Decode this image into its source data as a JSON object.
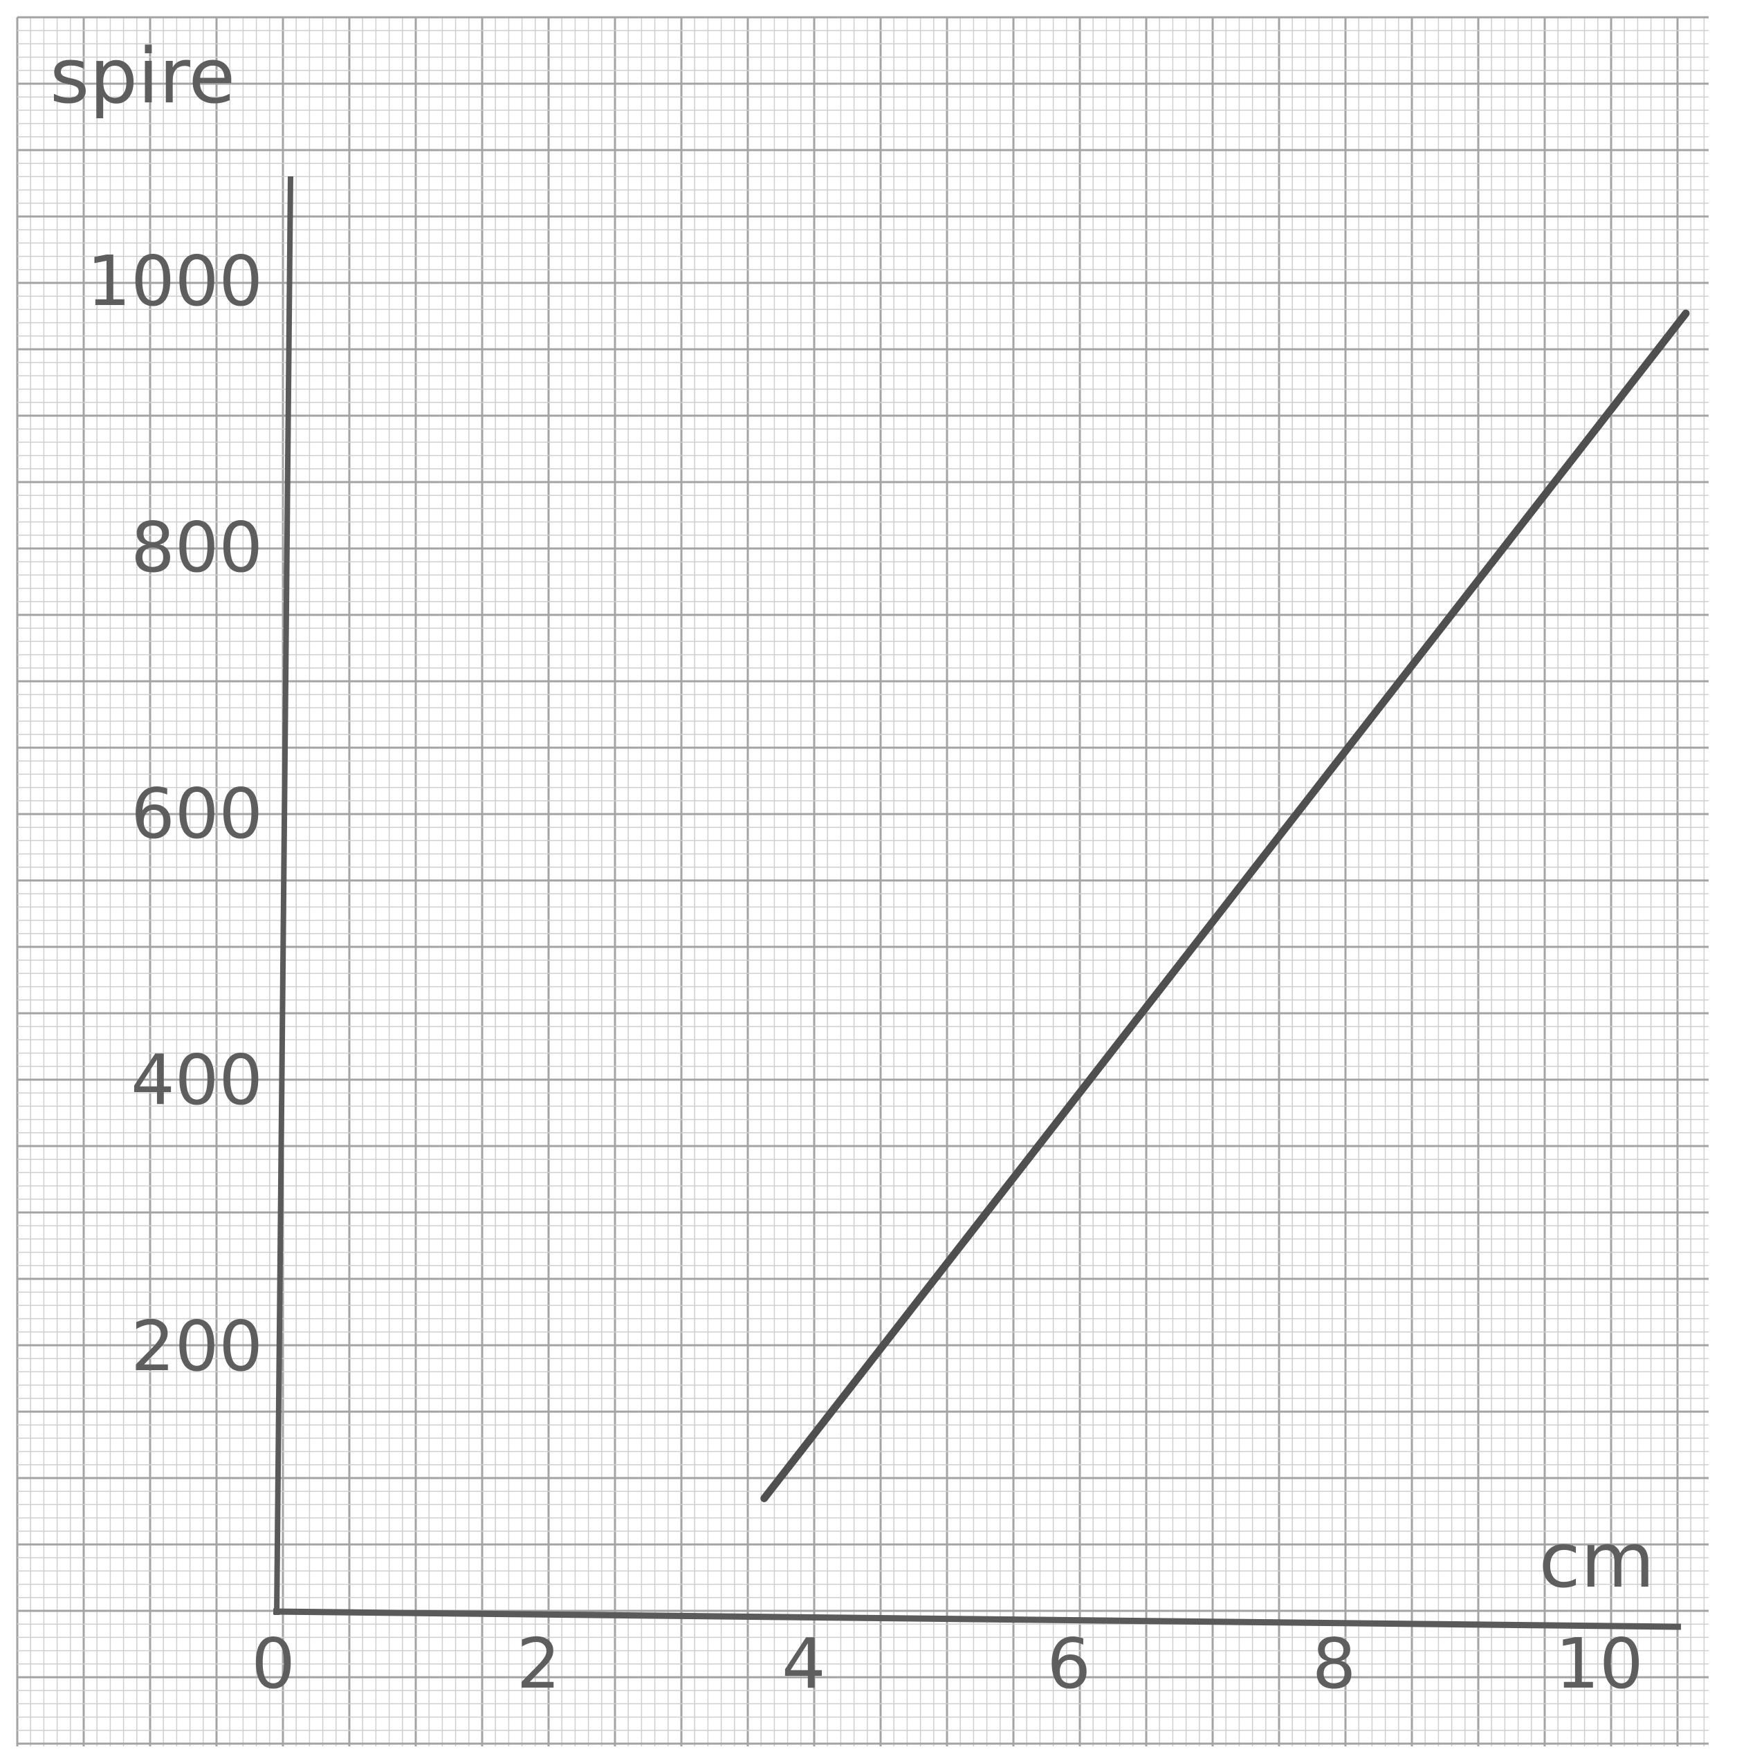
{
  "chart_data": {
    "type": "line",
    "xlabel": "cm",
    "ylabel": "spire",
    "xlim": [
      0,
      10.8
    ],
    "ylim": [
      0,
      1090
    ],
    "grid": true,
    "x_ticks": [
      {
        "value": 0,
        "label": "0"
      },
      {
        "value": 2,
        "label": "2"
      },
      {
        "value": 4,
        "label": "4"
      },
      {
        "value": 6,
        "label": "6"
      },
      {
        "value": 8,
        "label": "8"
      },
      {
        "value": 10,
        "label": "10"
      }
    ],
    "y_ticks": [
      {
        "value": 200,
        "label": "200"
      },
      {
        "value": 400,
        "label": "400"
      },
      {
        "value": 600,
        "label": "600"
      },
      {
        "value": 800,
        "label": "800"
      },
      {
        "value": 1000,
        "label": "1000"
      }
    ],
    "series": [
      {
        "points": [
          {
            "x": 3.65,
            "y": 85
          },
          {
            "x": 10.6,
            "y": 975
          }
        ]
      }
    ],
    "colors": {
      "paper": "#ffffff",
      "grid_minor": "#cfcfcf",
      "grid_major": "#a3a3a3",
      "axis": "#5a5a5a",
      "line": "#4f4f4f"
    }
  }
}
